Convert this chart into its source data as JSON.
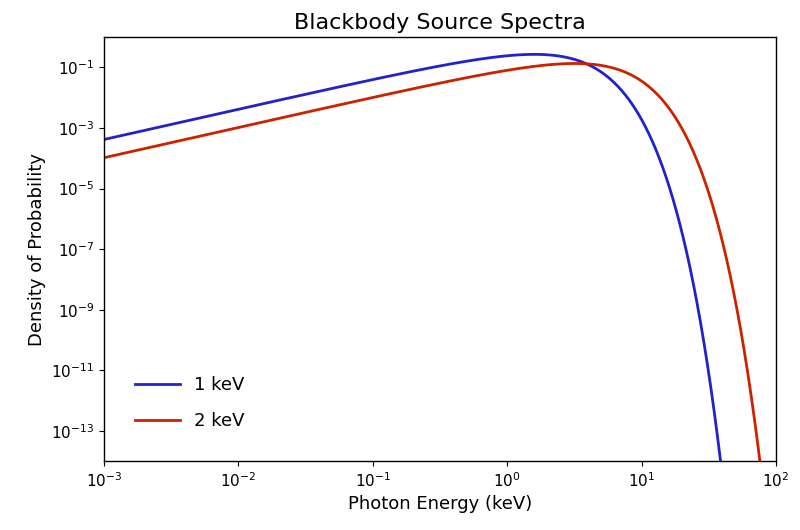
{
  "title": "Blackbody Source Spectra",
  "xlabel": "Photon Energy (keV)",
  "ylabel": "Density of Probability",
  "xlim_log": [
    -3,
    2
  ],
  "ylim_log": [
    -14,
    0
  ],
  "kT_values": [
    1.0,
    2.0
  ],
  "colors": [
    "#2222cc",
    "#cc2200"
  ],
  "labels": [
    "1 keV",
    "2 keV"
  ],
  "line_width": 2.0,
  "background_color": "#ffffff",
  "title_fontsize": 16,
  "label_fontsize": 13,
  "tick_fontsize": 11,
  "legend_fontsize": 13,
  "figsize": [
    8.0,
    5.3
  ],
  "dpi": 100
}
